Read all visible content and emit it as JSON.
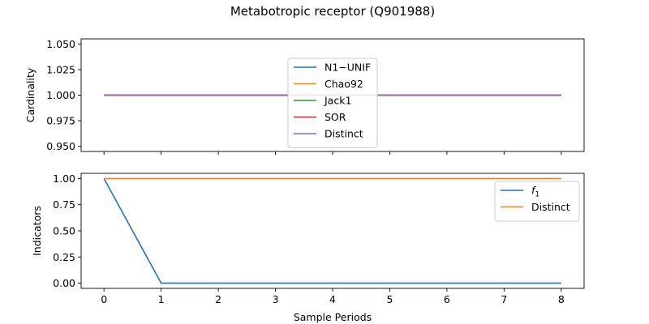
{
  "title": "Metabotropic receptor (Q901988)",
  "chart_data": [
    {
      "type": "line",
      "ylabel": "Cardinality",
      "xlim": [
        -0.4,
        8.4
      ],
      "ylim": [
        0.945,
        1.055
      ],
      "xticks": [
        0,
        1,
        2,
        3,
        4,
        5,
        6,
        7,
        8
      ],
      "yticks": [
        0.95,
        0.975,
        1.0,
        1.025,
        1.05
      ],
      "ytick_labels": [
        "0.950",
        "0.975",
        "1.000",
        "1.025",
        "1.050"
      ],
      "x": [
        0,
        1,
        2,
        3,
        4,
        5,
        6,
        7,
        8
      ],
      "legend": "upper-center",
      "series": [
        {
          "name": "N1−UNIF",
          "color": "#1f77b4",
          "values": [
            1,
            1,
            1,
            1,
            1,
            1,
            1,
            1,
            1
          ]
        },
        {
          "name": "Chao92",
          "color": "#ff7f0e",
          "values": [
            1,
            1,
            1,
            1,
            1,
            1,
            1,
            1,
            1
          ]
        },
        {
          "name": "Jack1",
          "color": "#2ca02c",
          "values": [
            1,
            1,
            1,
            1,
            1,
            1,
            1,
            1,
            1
          ]
        },
        {
          "name": "SOR",
          "color": "#d62728",
          "values": [
            1,
            1,
            1,
            1,
            1,
            1,
            1,
            1,
            1
          ]
        },
        {
          "name": "Distinct",
          "color": "#9467bd",
          "values": [
            1,
            1,
            1,
            1,
            1,
            1,
            1,
            1,
            1
          ]
        }
      ]
    },
    {
      "type": "line",
      "ylabel": "Indicators",
      "xlabel": "Sample Periods",
      "xlim": [
        -0.4,
        8.4
      ],
      "ylim": [
        -0.05,
        1.05
      ],
      "xticks": [
        0,
        1,
        2,
        3,
        4,
        5,
        6,
        7,
        8
      ],
      "xtick_labels": [
        "0",
        "1",
        "2",
        "3",
        "4",
        "5",
        "6",
        "7",
        "8"
      ],
      "yticks": [
        0,
        0.25,
        0.5,
        0.75,
        1.0
      ],
      "ytick_labels": [
        "0.00",
        "0.25",
        "0.50",
        "0.75",
        "1.00"
      ],
      "x": [
        0,
        1,
        2,
        3,
        4,
        5,
        6,
        7,
        8
      ],
      "legend": "upper-right",
      "series": [
        {
          "name": "f",
          "subscript": "1",
          "color": "#1f77b4",
          "values": [
            1,
            0,
            0,
            0,
            0,
            0,
            0,
            0,
            0
          ]
        },
        {
          "name": "Distinct",
          "color": "#ff7f0e",
          "values": [
            1,
            1,
            1,
            1,
            1,
            1,
            1,
            1,
            1
          ]
        }
      ]
    }
  ]
}
